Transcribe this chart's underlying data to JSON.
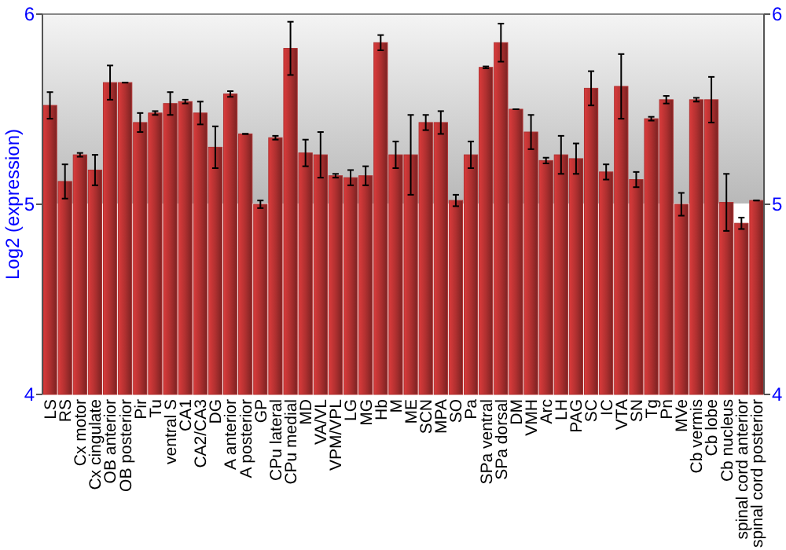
{
  "chart_data": {
    "type": "bar",
    "ylabel": "Log2 (expression)",
    "categories": [
      "LS",
      "RS",
      "Cx motor",
      "Cx cingulate",
      "OB anterior",
      "OB posterior",
      "Pir",
      "Tu",
      "ventral S",
      "CA1",
      "CA2/CA3",
      "DG",
      "A anterior",
      "A posterior",
      "GP",
      "CPu lateral",
      "CPu medial",
      "MD",
      "VA/VL",
      "VPM/VPL",
      "LG",
      "MG",
      "Hb",
      "M",
      "ME",
      "SCN",
      "MPA",
      "SO",
      "Pa",
      "SPa ventral",
      "SPa dorsal",
      "DM",
      "VMH",
      "Arc",
      "LH",
      "PAG",
      "SC",
      "IC",
      "VTA",
      "SN",
      "Tg",
      "Pn",
      "MVe",
      "Cb vermis",
      "Cb lobe",
      "Cb nucleus",
      "spinal cord anterior",
      "spinal cord posterior"
    ],
    "values": [
      5.52,
      5.12,
      5.26,
      5.18,
      5.64,
      5.64,
      5.43,
      5.48,
      5.53,
      5.54,
      5.48,
      5.3,
      5.58,
      5.37,
      5.0,
      5.35,
      5.82,
      5.27,
      5.26,
      5.15,
      5.14,
      5.15,
      5.85,
      5.26,
      5.26,
      5.43,
      5.43,
      5.02,
      5.26,
      5.72,
      5.85,
      5.5,
      5.38,
      5.23,
      5.26,
      5.24,
      5.61,
      5.17,
      5.62,
      5.13,
      5.45,
      5.55,
      5.0,
      5.55,
      5.55,
      5.01,
      4.9,
      5.02
    ],
    "errors": [
      0.07,
      0.09,
      0.01,
      0.08,
      0.09,
      0,
      0.05,
      0.01,
      0.06,
      0.01,
      0.06,
      0.11,
      0.015,
      0,
      0.02,
      0.01,
      0.14,
      0.07,
      0.12,
      0.01,
      0.04,
      0.05,
      0.04,
      0.07,
      0.21,
      0.04,
      0.06,
      0.03,
      0.07,
      0.005,
      0.1,
      0,
      0.09,
      0.015,
      0.1,
      0.08,
      0.09,
      0.04,
      0.17,
      0.04,
      0.01,
      0.02,
      0.06,
      0.01,
      0.12,
      0.15,
      0.03,
      0
    ],
    "color": "#b03030",
    "ylim": [
      4,
      6
    ],
    "yticks": [
      4,
      5,
      6
    ],
    "y2lim": [
      4,
      6
    ],
    "y2ticks": [
      4,
      5,
      6
    ],
    "grid": "y"
  }
}
